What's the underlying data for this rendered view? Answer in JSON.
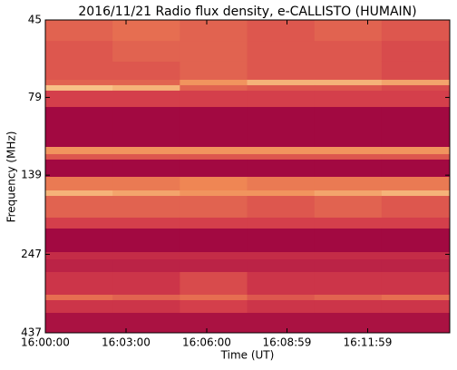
{
  "chart_data": {
    "type": "heatmap",
    "title": "2016/11/21  Radio flux density, e-CALLISTO (HUMAIN)",
    "xlabel": "Time (UT)",
    "ylabel": "Frequency (MHz)",
    "x_edges": [
      57600,
      57750,
      57900,
      58050,
      58200,
      58350,
      58502
    ],
    "y_edges": [
      45,
      52.4,
      60.9,
      69.5,
      72.3,
      75.2,
      84.7,
      113.2,
      119.3,
      124.1,
      140.7,
      155.3,
      161.6,
      189.2,
      204.8,
      243.1,
      256.3,
      281.0,
      331.3,
      344.7,
      378.0,
      437
    ],
    "z": [
      [
        0.5,
        0.55,
        0.5,
        0.45,
        0.5,
        0.45
      ],
      [
        0.45,
        0.5,
        0.5,
        0.45,
        0.45,
        0.4
      ],
      [
        0.45,
        0.45,
        0.5,
        0.45,
        0.45,
        0.4
      ],
      [
        0.5,
        0.5,
        0.7,
        0.8,
        0.8,
        0.75
      ],
      [
        0.85,
        0.8,
        0.5,
        0.45,
        0.45,
        0.4
      ],
      [
        0.35,
        0.35,
        0.35,
        0.35,
        0.35,
        0.35
      ],
      [
        0.05,
        0.05,
        0.05,
        0.05,
        0.05,
        0.05
      ],
      [
        0.7,
        0.7,
        0.7,
        0.7,
        0.7,
        0.7
      ],
      [
        0.45,
        0.45,
        0.45,
        0.45,
        0.45,
        0.45
      ],
      [
        0.05,
        0.05,
        0.05,
        0.05,
        0.05,
        0.05
      ],
      [
        0.6,
        0.6,
        0.65,
        0.6,
        0.6,
        0.6
      ],
      [
        0.8,
        0.75,
        0.7,
        0.7,
        0.75,
        0.8
      ],
      [
        0.5,
        0.5,
        0.5,
        0.45,
        0.5,
        0.45
      ],
      [
        0.35,
        0.35,
        0.35,
        0.35,
        0.35,
        0.35
      ],
      [
        0.05,
        0.05,
        0.05,
        0.05,
        0.05,
        0.05
      ],
      [
        0.25,
        0.25,
        0.25,
        0.25,
        0.25,
        0.25
      ],
      [
        0.2,
        0.2,
        0.2,
        0.2,
        0.2,
        0.2
      ],
      [
        0.3,
        0.3,
        0.4,
        0.3,
        0.3,
        0.3
      ],
      [
        0.55,
        0.5,
        0.55,
        0.45,
        0.5,
        0.55
      ],
      [
        0.3,
        0.3,
        0.35,
        0.3,
        0.3,
        0.3
      ],
      [
        0.1,
        0.1,
        0.1,
        0.1,
        0.1,
        0.1
      ]
    ],
    "zlim": [
      0,
      1
    ],
    "colormap": [
      "#99003f",
      "#d23b4a",
      "#f08a55",
      "#fdf0b0"
    ],
    "xlim": [
      57600,
      58502
    ],
    "xticks": [
      {
        "value": 57600,
        "label": "16:00:00"
      },
      {
        "value": 57780,
        "label": "16:03:00"
      },
      {
        "value": 57960,
        "label": "16:06:00"
      },
      {
        "value": 58139,
        "label": "16:08:59"
      },
      {
        "value": 58319,
        "label": "16:11:59"
      }
    ],
    "ylim": [
      437,
      45
    ],
    "yscale": "log",
    "yticks": [
      45,
      79,
      139,
      247,
      437
    ]
  }
}
